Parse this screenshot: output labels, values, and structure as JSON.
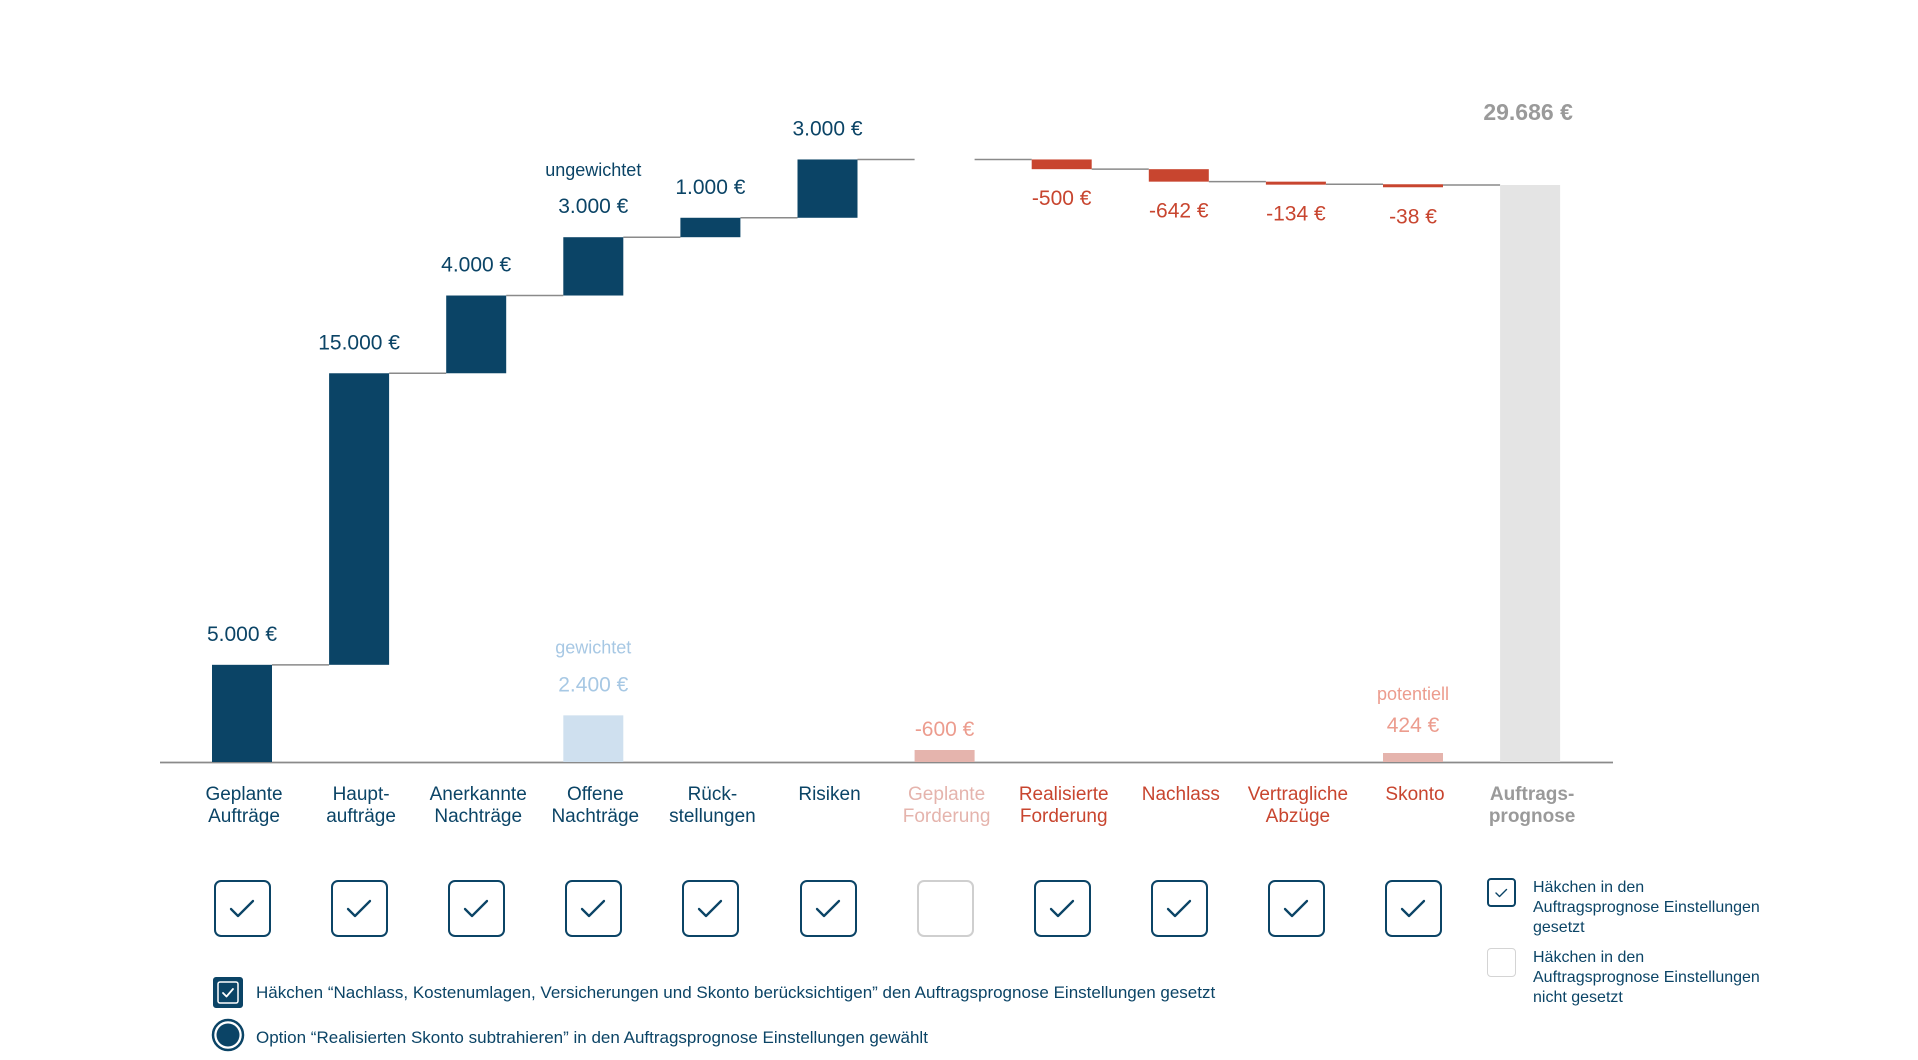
{
  "chart_data": {
    "type": "waterfall",
    "ylim": [
      0,
      29686
    ],
    "steps": [
      {
        "category": "Geplante\nAufträge",
        "value": 5000,
        "label": "5.000 €",
        "kind": "increase",
        "checked": true
      },
      {
        "category": "Haupt-\naufträge",
        "value": 15000,
        "label": "15.000 €",
        "kind": "increase",
        "checked": true
      },
      {
        "category": "Anerkannte\nNachträge",
        "value": 4000,
        "label": "4.000 €",
        "kind": "increase",
        "checked": true
      },
      {
        "category": "Offene\nNachträge",
        "value": 3000,
        "label": "3.000 €",
        "note": "ungewichtet",
        "kind": "increase",
        "checked": true,
        "alt": {
          "value": 2400,
          "label": "2.400 €",
          "note": "gewichtet"
        }
      },
      {
        "category": "Rück-\nstellungen",
        "value": 1000,
        "label": "1.000 €",
        "kind": "increase",
        "checked": true
      },
      {
        "category": "Risiken",
        "value": 3000,
        "label": "3.000 €",
        "kind": "increase",
        "checked": true
      },
      {
        "category": "Geplante\nForderung",
        "value": 0,
        "kind": "inactive",
        "checked": false,
        "alt": {
          "value": -600,
          "label": "-600 €"
        }
      },
      {
        "category": "Realisierte\nForderung",
        "value": -500,
        "label": "-500 €",
        "kind": "decrease",
        "checked": true
      },
      {
        "category": "Nachlass",
        "value": -642,
        "label": "-642 €",
        "kind": "decrease",
        "checked": true
      },
      {
        "category": "Vertragliche\nAbzüge",
        "value": -134,
        "label": "-134 €",
        "kind": "decrease",
        "checked": true
      },
      {
        "category": "Skonto",
        "value": -38,
        "label": "-38 €",
        "kind": "decrease",
        "checked": true,
        "alt": {
          "value": 424,
          "label": "424 €",
          "note": "potentiell"
        }
      },
      {
        "category": "Auftrags-\nprognose",
        "value": 29686,
        "label": "29.686 €",
        "kind": "total"
      }
    ],
    "colors": {
      "increase": "#0b4466",
      "decrease": "#c8452f",
      "total": "#e4e4e4",
      "increase_light": "#cfe0ef",
      "light_label": "#a7c8e4",
      "decrease_light": "#e5b4ad",
      "decrease_light_label": "#ec9c8e",
      "total_label": "#9a9a9a",
      "connector": "#8a8a8a",
      "axis": "#8a8a8a"
    }
  },
  "notes": {
    "nachlass_checked": "Häkchen “Nachlass, Kostenumlagen, Versicherungen und Skonto berücksichtigen” den Auftragsprognose Einstellungen gesetzt",
    "skonto_option": "Option “Realisierten Skonto subtrahieren” in den Auftragsprognose Einstellungen gewählt"
  },
  "legend": {
    "checked": "Häkchen in den Auftragsprognose Einstellungen gesetzt",
    "unchecked": "Häkchen in den Auftragsprognose Einstellungen nicht gesetzt"
  }
}
